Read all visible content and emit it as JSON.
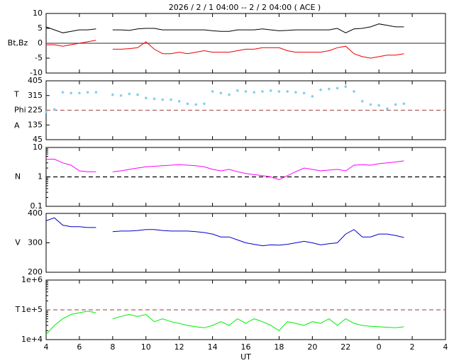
{
  "title": "2026 /  2 /  1   04:00 -- 2 /  2   04:00 ( ACE )",
  "chart_data": [
    {
      "type": "line",
      "ylabel": [
        "Bt,Bz"
      ],
      "ylim": [
        -10,
        10
      ],
      "yticks": [
        -10,
        -5,
        0,
        5,
        10
      ],
      "reference_line": {
        "value": 0,
        "color": "#555555",
        "dashed": false
      },
      "x": [
        4,
        4.5,
        5,
        5.5,
        6,
        6.5,
        7,
        7.5,
        8,
        8.5,
        9,
        9.5,
        10,
        10.5,
        11,
        11.5,
        12,
        12.5,
        13,
        13.5,
        14,
        14.5,
        15,
        15.5,
        16,
        16.5,
        17,
        17.5,
        18,
        18.5,
        19,
        19.5,
        20,
        20.5,
        21,
        21.5,
        22,
        22.5,
        23,
        23.5,
        24,
        24.5,
        25,
        25.5
      ],
      "series": [
        {
          "name": "Bt",
          "color": "#000000",
          "values": [
            5.5,
            4.5,
            3.5,
            4,
            4.5,
            4.5,
            4.8,
            null,
            4.5,
            4.5,
            4.3,
            4.8,
            5,
            5,
            4.5,
            4.5,
            4.5,
            4.5,
            4.5,
            4.5,
            4.2,
            4,
            4,
            4.5,
            4.5,
            4.5,
            4.8,
            4.5,
            4.2,
            4.3,
            4.5,
            4.5,
            4.5,
            4.5,
            4.5,
            5,
            3.5,
            4.8,
            5,
            5.5,
            6.5,
            6,
            5.5,
            5.5
          ]
        },
        {
          "name": "Bz",
          "color": "#ee0000",
          "values": [
            -0.5,
            -0.5,
            -1,
            -0.5,
            0,
            0.5,
            1,
            null,
            -2,
            -2,
            -1.8,
            -1.5,
            0.5,
            -2,
            -3.5,
            -3.5,
            -3,
            -3.5,
            -3,
            -2.5,
            -3,
            -3,
            -3,
            -2.5,
            -2,
            -2,
            -1.5,
            -1.5,
            -1.5,
            -2.5,
            -3,
            -3,
            -3,
            -3,
            -2.5,
            -1.5,
            -1,
            -3.5,
            -4.5,
            -5,
            -4.5,
            -4,
            -4,
            -3.5
          ]
        }
      ]
    },
    {
      "type": "scatter",
      "ylabel": [
        "T",
        "Phi",
        "A"
      ],
      "ylim": [
        45,
        405
      ],
      "yticks": [
        45,
        135,
        225,
        315,
        405
      ],
      "reference_line": {
        "value": 225,
        "color": "#b06060",
        "dashed": true
      },
      "x": [
        4,
        4.5,
        5,
        5.5,
        6,
        6.5,
        7,
        7.5,
        8,
        8.5,
        9,
        9.5,
        10,
        10.5,
        11,
        11.5,
        12,
        12.5,
        13,
        13.5,
        14,
        14.5,
        15,
        15.5,
        16,
        16.5,
        17,
        17.5,
        18,
        18.5,
        19,
        19.5,
        20,
        20.5,
        21,
        21.5,
        22,
        22.5,
        23,
        23.5,
        24,
        24.5,
        25,
        25.5
      ],
      "series": [
        {
          "name": "Phi",
          "color": "#87ceeb",
          "values": [
            215,
            230,
            335,
            330,
            330,
            335,
            335,
            null,
            320,
            315,
            325,
            320,
            300,
            295,
            290,
            290,
            280,
            265,
            260,
            265,
            340,
            330,
            320,
            345,
            340,
            335,
            340,
            345,
            340,
            340,
            335,
            330,
            310,
            350,
            355,
            360,
            370,
            340,
            280,
            260,
            255,
            235,
            260,
            265
          ]
        }
      ]
    },
    {
      "type": "line",
      "ylabel": [
        "N"
      ],
      "log_scale": true,
      "ylim": [
        0.1,
        10
      ],
      "yticks": [
        0.1,
        1,
        10
      ],
      "reference_line": {
        "value": 1,
        "color": "#000000",
        "dashed": true
      },
      "x": [
        4,
        4.5,
        5,
        5.5,
        6,
        6.5,
        7,
        7.5,
        8,
        8.5,
        9,
        9.5,
        10,
        10.5,
        11,
        11.5,
        12,
        12.5,
        13,
        13.5,
        14,
        14.5,
        15,
        15.5,
        16,
        16.5,
        17,
        17.5,
        18,
        18.5,
        19,
        19.5,
        20,
        20.5,
        21,
        21.5,
        22,
        22.5,
        23,
        23.5,
        24,
        24.5,
        25,
        25.5
      ],
      "series": [
        {
          "name": "N",
          "color": "#ff00ff",
          "values": [
            4,
            4,
            3,
            2.5,
            1.6,
            1.5,
            1.5,
            null,
            1.5,
            1.6,
            1.8,
            2,
            2.2,
            2.3,
            2.4,
            2.5,
            2.6,
            2.5,
            2.4,
            2.2,
            1.8,
            1.6,
            1.8,
            1.5,
            1.3,
            1.2,
            1.1,
            1.0,
            0.8,
            1.1,
            1.5,
            2.0,
            1.8,
            1.6,
            1.7,
            1.8,
            1.6,
            2.5,
            2.6,
            2.5,
            2.8,
            3.0,
            3.2,
            3.5
          ]
        }
      ]
    },
    {
      "type": "line",
      "ylabel": [
        "V"
      ],
      "ylim": [
        200,
        400
      ],
      "yticks": [
        200,
        300,
        400
      ],
      "x": [
        4,
        4.5,
        5,
        5.5,
        6,
        6.5,
        7,
        7.5,
        8,
        8.5,
        9,
        9.5,
        10,
        10.5,
        11,
        11.5,
        12,
        12.5,
        13,
        13.5,
        14,
        14.5,
        15,
        15.5,
        16,
        16.5,
        17,
        17.5,
        18,
        18.5,
        19,
        19.5,
        20,
        20.5,
        21,
        21.5,
        22,
        22.5,
        23,
        23.5,
        24,
        24.5,
        25,
        25.5
      ],
      "series": [
        {
          "name": "V",
          "color": "#0000cc",
          "values": [
            375,
            385,
            360,
            355,
            355,
            352,
            352,
            null,
            338,
            340,
            340,
            342,
            345,
            345,
            342,
            340,
            340,
            340,
            338,
            335,
            330,
            320,
            320,
            310,
            300,
            295,
            290,
            293,
            292,
            295,
            300,
            305,
            300,
            293,
            297,
            300,
            330,
            345,
            320,
            320,
            330,
            330,
            325,
            318
          ]
        }
      ]
    },
    {
      "type": "line",
      "ylabel": [
        "T"
      ],
      "log_scale": true,
      "ylim": [
        10000,
        1000000
      ],
      "yticks": [
        {
          "value": 10000,
          "label": "1e+4"
        },
        {
          "value": 100000,
          "label": "1e+5"
        },
        {
          "value": 1000000,
          "label": "1e+6"
        }
      ],
      "reference_line": {
        "value": 100000,
        "color": "#b06060",
        "dashed": true
      },
      "xlabel": "UT",
      "xlim": [
        4,
        28
      ],
      "xticks": [
        4,
        6,
        8,
        10,
        12,
        14,
        16,
        18,
        20,
        22,
        {
          "value": 24,
          "label": "0"
        },
        {
          "value": 26,
          "label": "2"
        },
        {
          "value": 28,
          "label": "4"
        }
      ],
      "x": [
        4,
        4.5,
        5,
        5.5,
        6,
        6.5,
        7,
        7.5,
        8,
        8.5,
        9,
        9.5,
        10,
        10.5,
        11,
        11.5,
        12,
        12.5,
        13,
        13.5,
        14,
        14.5,
        15,
        15.5,
        16,
        16.5,
        17,
        17.5,
        18,
        18.5,
        19,
        19.5,
        20,
        20.5,
        21,
        21.5,
        22,
        22.5,
        23,
        23.5,
        24,
        24.5,
        25,
        25.5
      ],
      "series": [
        {
          "name": "T",
          "color": "#00ee00",
          "values": [
            15000,
            30000,
            50000,
            70000,
            80000,
            90000,
            80000,
            null,
            50000,
            60000,
            70000,
            60000,
            70000,
            40000,
            50000,
            40000,
            35000,
            30000,
            27000,
            25000,
            30000,
            40000,
            30000,
            50000,
            35000,
            50000,
            40000,
            30000,
            20000,
            40000,
            35000,
            30000,
            40000,
            35000,
            50000,
            30000,
            50000,
            35000,
            30000,
            28000,
            27000,
            26000,
            25000,
            27000
          ]
        }
      ]
    }
  ]
}
